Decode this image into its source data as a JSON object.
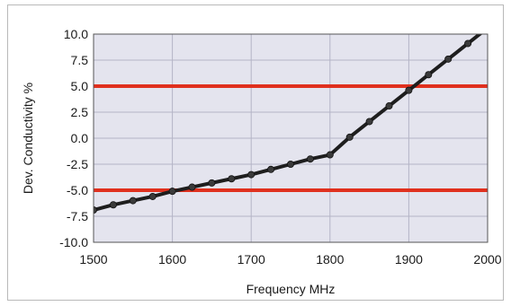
{
  "colors": {
    "plot_background": "#e4e4ee",
    "grid": "#b4b4c6",
    "series_line": "#1e1e1e",
    "marker": "#3a3a3a",
    "threshold": "#e0301e"
  },
  "chart_data": {
    "type": "line",
    "title": "",
    "xlabel": "Frequency MHz",
    "ylabel": "Dev. Conductivity %",
    "xlim": [
      1500,
      2000
    ],
    "ylim": [
      -10,
      10
    ],
    "xticks": [
      "1500",
      "1600",
      "1700",
      "1800",
      "1900",
      "2000"
    ],
    "yticks": [
      "10.0",
      "7.5",
      "5.0",
      "2.5",
      "0.0",
      "-2.5",
      "-5.0",
      "-7.5",
      "-10.0"
    ],
    "grid": true,
    "legend": "none",
    "series": [
      {
        "x": [
          1500,
          1525,
          1550,
          1575,
          1600,
          1625,
          1650,
          1675,
          1700,
          1725,
          1750,
          1775,
          1800,
          1825,
          1850,
          1875,
          1900,
          1925,
          1950,
          1975,
          2000
        ],
        "y": [
          -6.9,
          -6.4,
          -6.0,
          -5.6,
          -5.1,
          -4.7,
          -4.3,
          -3.9,
          -3.5,
          -3.0,
          -2.5,
          -2.0,
          -1.6,
          0.1,
          1.6,
          3.1,
          4.6,
          6.1,
          7.6,
          9.1,
          10.6
        ]
      }
    ],
    "threshold_lines": [
      5.0,
      -5.0
    ]
  }
}
